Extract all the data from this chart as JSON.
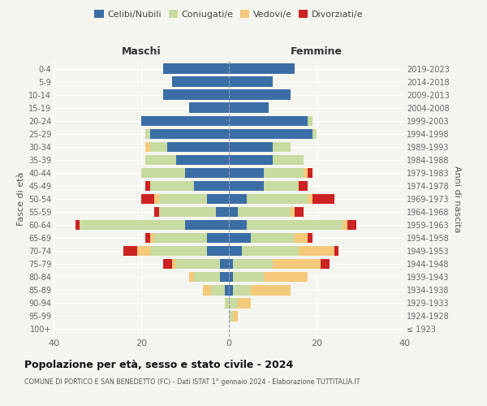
{
  "age_groups": [
    "100+",
    "95-99",
    "90-94",
    "85-89",
    "80-84",
    "75-79",
    "70-74",
    "65-69",
    "60-64",
    "55-59",
    "50-54",
    "45-49",
    "40-44",
    "35-39",
    "30-34",
    "25-29",
    "20-24",
    "15-19",
    "10-14",
    "5-9",
    "0-4"
  ],
  "birth_years": [
    "≤ 1923",
    "1924-1928",
    "1929-1933",
    "1934-1938",
    "1939-1943",
    "1944-1948",
    "1949-1953",
    "1954-1958",
    "1959-1963",
    "1964-1968",
    "1969-1973",
    "1974-1978",
    "1979-1983",
    "1984-1988",
    "1989-1993",
    "1994-1998",
    "1999-2003",
    "2004-2008",
    "2009-2013",
    "2014-2018",
    "2019-2023"
  ],
  "males": {
    "celibi": [
      0,
      0,
      0,
      1,
      2,
      2,
      5,
      5,
      10,
      3,
      5,
      8,
      10,
      12,
      14,
      18,
      20,
      9,
      15,
      13,
      15
    ],
    "coniugati": [
      0,
      0,
      1,
      3,
      6,
      10,
      13,
      12,
      24,
      13,
      11,
      10,
      10,
      7,
      4,
      1,
      0,
      0,
      0,
      0,
      0
    ],
    "vedovi": [
      0,
      0,
      0,
      2,
      1,
      1,
      3,
      1,
      0,
      0,
      1,
      0,
      0,
      0,
      1,
      0,
      0,
      0,
      0,
      0,
      0
    ],
    "divorziati": [
      0,
      0,
      0,
      0,
      0,
      2,
      3,
      1,
      1,
      1,
      3,
      1,
      0,
      0,
      0,
      0,
      0,
      0,
      0,
      0,
      0
    ]
  },
  "females": {
    "nubili": [
      0,
      0,
      0,
      1,
      1,
      1,
      3,
      5,
      4,
      2,
      4,
      8,
      8,
      10,
      10,
      19,
      18,
      9,
      14,
      10,
      15
    ],
    "coniugate": [
      0,
      1,
      2,
      4,
      7,
      9,
      13,
      10,
      22,
      12,
      14,
      8,
      9,
      7,
      4,
      1,
      1,
      0,
      0,
      0,
      0
    ],
    "vedove": [
      0,
      1,
      3,
      9,
      10,
      11,
      8,
      3,
      1,
      1,
      1,
      0,
      1,
      0,
      0,
      0,
      0,
      0,
      0,
      0,
      0
    ],
    "divorziate": [
      0,
      0,
      0,
      0,
      0,
      2,
      1,
      1,
      2,
      2,
      5,
      2,
      1,
      0,
      0,
      0,
      0,
      0,
      0,
      0,
      0
    ]
  },
  "colors": {
    "celibi": "#3a6ea5",
    "coniugati": "#c8dba0",
    "vedovi": "#f5c97a",
    "divorziati": "#cc2222"
  },
  "xlim": 40,
  "title": "Popolazione per età, sesso e stato civile - 2024",
  "subtitle": "COMUNE DI PORTICO E SAN BENEDETTO (FC) - Dati ISTAT 1° gennaio 2024 - Elaborazione TUTTITALIA.IT",
  "ylabel_left": "Fasce di età",
  "ylabel_right": "Anni di nascita",
  "legend_labels": [
    "Celibi/Nubili",
    "Coniugati/e",
    "Vedovi/e",
    "Divorziati/e"
  ],
  "header_maschi": "Maschi",
  "header_femmine": "Femmine",
  "bg_color": "#f5f5f0"
}
